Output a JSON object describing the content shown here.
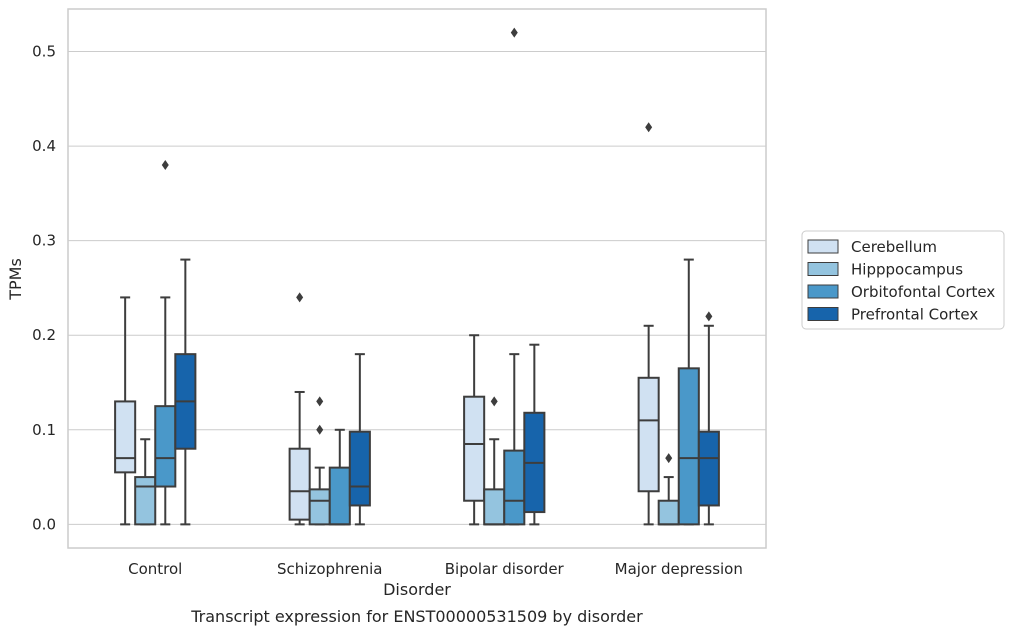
{
  "chart_data": {
    "type": "box",
    "title": "",
    "caption": "Transcript expression for ENST00000531509 by disorder",
    "xlabel": "Disorder",
    "ylabel": "TPMs",
    "ylim": [
      -0.025,
      0.545
    ],
    "yticks": [
      0.0,
      0.1,
      0.2,
      0.3,
      0.4,
      0.5
    ],
    "ytick_labels": [
      "0.0",
      "0.1",
      "0.2",
      "0.3",
      "0.4",
      "0.5"
    ],
    "grid": "horizontal",
    "legend_position": "right",
    "categories": [
      "Control",
      "Schizophrenia",
      "Bipolar disorder",
      "Major depression"
    ],
    "series": [
      {
        "name": "Cerebellum",
        "color": "#d0e1f2",
        "boxes": [
          {
            "whislo": 0.0,
            "q1": 0.055,
            "median": 0.07,
            "q3": 0.13,
            "whishi": 0.24,
            "fliers": []
          },
          {
            "whislo": 0.0,
            "q1": 0.005,
            "median": 0.035,
            "q3": 0.08,
            "whishi": 0.14,
            "fliers": [
              0.24
            ]
          },
          {
            "whislo": 0.0,
            "q1": 0.025,
            "median": 0.085,
            "q3": 0.135,
            "whishi": 0.2,
            "fliers": []
          },
          {
            "whislo": 0.0,
            "q1": 0.035,
            "median": 0.11,
            "q3": 0.155,
            "whishi": 0.21,
            "fliers": [
              0.42
            ]
          }
        ]
      },
      {
        "name": "Hipppocampus",
        "color": "#94c4df",
        "boxes": [
          {
            "whislo": 0.0,
            "q1": 0.0,
            "median": 0.04,
            "q3": 0.05,
            "whishi": 0.09,
            "fliers": []
          },
          {
            "whislo": 0.0,
            "q1": 0.0,
            "median": 0.025,
            "q3": 0.037,
            "whishi": 0.06,
            "fliers": [
              0.1,
              0.13
            ]
          },
          {
            "whislo": 0.0,
            "q1": 0.0,
            "median": 0.0,
            "q3": 0.037,
            "whishi": 0.09,
            "fliers": [
              0.13
            ]
          },
          {
            "whislo": 0.0,
            "q1": 0.0,
            "median": 0.0,
            "q3": 0.025,
            "whishi": 0.05,
            "fliers": [
              0.07
            ]
          }
        ]
      },
      {
        "name": "Orbitofontal Cortex",
        "color": "#4a98c9",
        "boxes": [
          {
            "whislo": 0.0,
            "q1": 0.04,
            "median": 0.07,
            "q3": 0.125,
            "whishi": 0.24,
            "fliers": [
              0.38
            ]
          },
          {
            "whislo": 0.0,
            "q1": 0.0,
            "median": 0.0,
            "q3": 0.06,
            "whishi": 0.1,
            "fliers": []
          },
          {
            "whislo": 0.0,
            "q1": 0.0,
            "median": 0.025,
            "q3": 0.078,
            "whishi": 0.18,
            "fliers": [
              0.52
            ]
          },
          {
            "whislo": 0.0,
            "q1": 0.0,
            "median": 0.07,
            "q3": 0.165,
            "whishi": 0.28,
            "fliers": []
          }
        ]
      },
      {
        "name": "Prefrontal Cortex",
        "color": "#1764ab",
        "boxes": [
          {
            "whislo": 0.0,
            "q1": 0.08,
            "median": 0.13,
            "q3": 0.18,
            "whishi": 0.28,
            "fliers": []
          },
          {
            "whislo": 0.0,
            "q1": 0.02,
            "median": 0.04,
            "q3": 0.098,
            "whishi": 0.18,
            "fliers": []
          },
          {
            "whislo": 0.0,
            "q1": 0.013,
            "median": 0.065,
            "q3": 0.118,
            "whishi": 0.19,
            "fliers": []
          },
          {
            "whislo": 0.0,
            "q1": 0.02,
            "median": 0.07,
            "q3": 0.098,
            "whishi": 0.21,
            "fliers": [
              0.22
            ]
          }
        ]
      }
    ]
  }
}
